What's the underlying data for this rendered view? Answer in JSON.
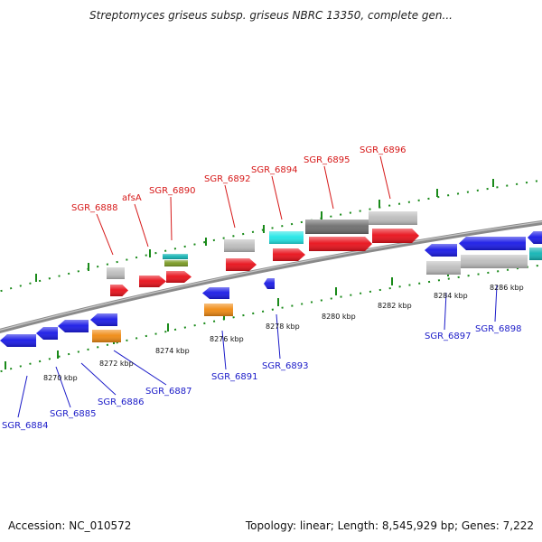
{
  "title": "Streptomyces griseus subsp. griseus NBRC 13350, complete gen...",
  "footer": {
    "accession": "Accession: NC_010572",
    "summary": "Topology: linear; Length: 8,545,929 bp; Genes: 7,222"
  },
  "colors": {
    "red": "#e8101a",
    "blue": "#1a1ae6",
    "gray": "#bdbdbd",
    "darkgray": "#6e6e6e",
    "cyan": "#22e6e6",
    "orange": "#f08a12",
    "olive": "#7a9a22",
    "teal": "#12b4b4",
    "label_top": "#d61818",
    "label_bottom": "#1a1ac8",
    "backbone": "#8a8a8a",
    "tick": "#1a8a1a"
  },
  "scale_labels": [
    "8270 kbp",
    "8272 kbp",
    "8274 kbp",
    "8276 kbp",
    "8278 kbp",
    "8280 kbp",
    "8282 kbp",
    "8284 kbp",
    "8286 kbp"
  ],
  "top_labels": [
    "SGR_6888",
    "afsA",
    "SGR_6890",
    "SGR_6892",
    "SGR_6894",
    "SGR_6895",
    "SGR_6896"
  ],
  "bottom_labels": [
    "SGR_6884",
    "SGR_6885",
    "SGR_6886",
    "SGR_6887",
    "SGR_6891",
    "SGR_6893",
    "SGR_6897",
    "SGR_6898"
  ]
}
